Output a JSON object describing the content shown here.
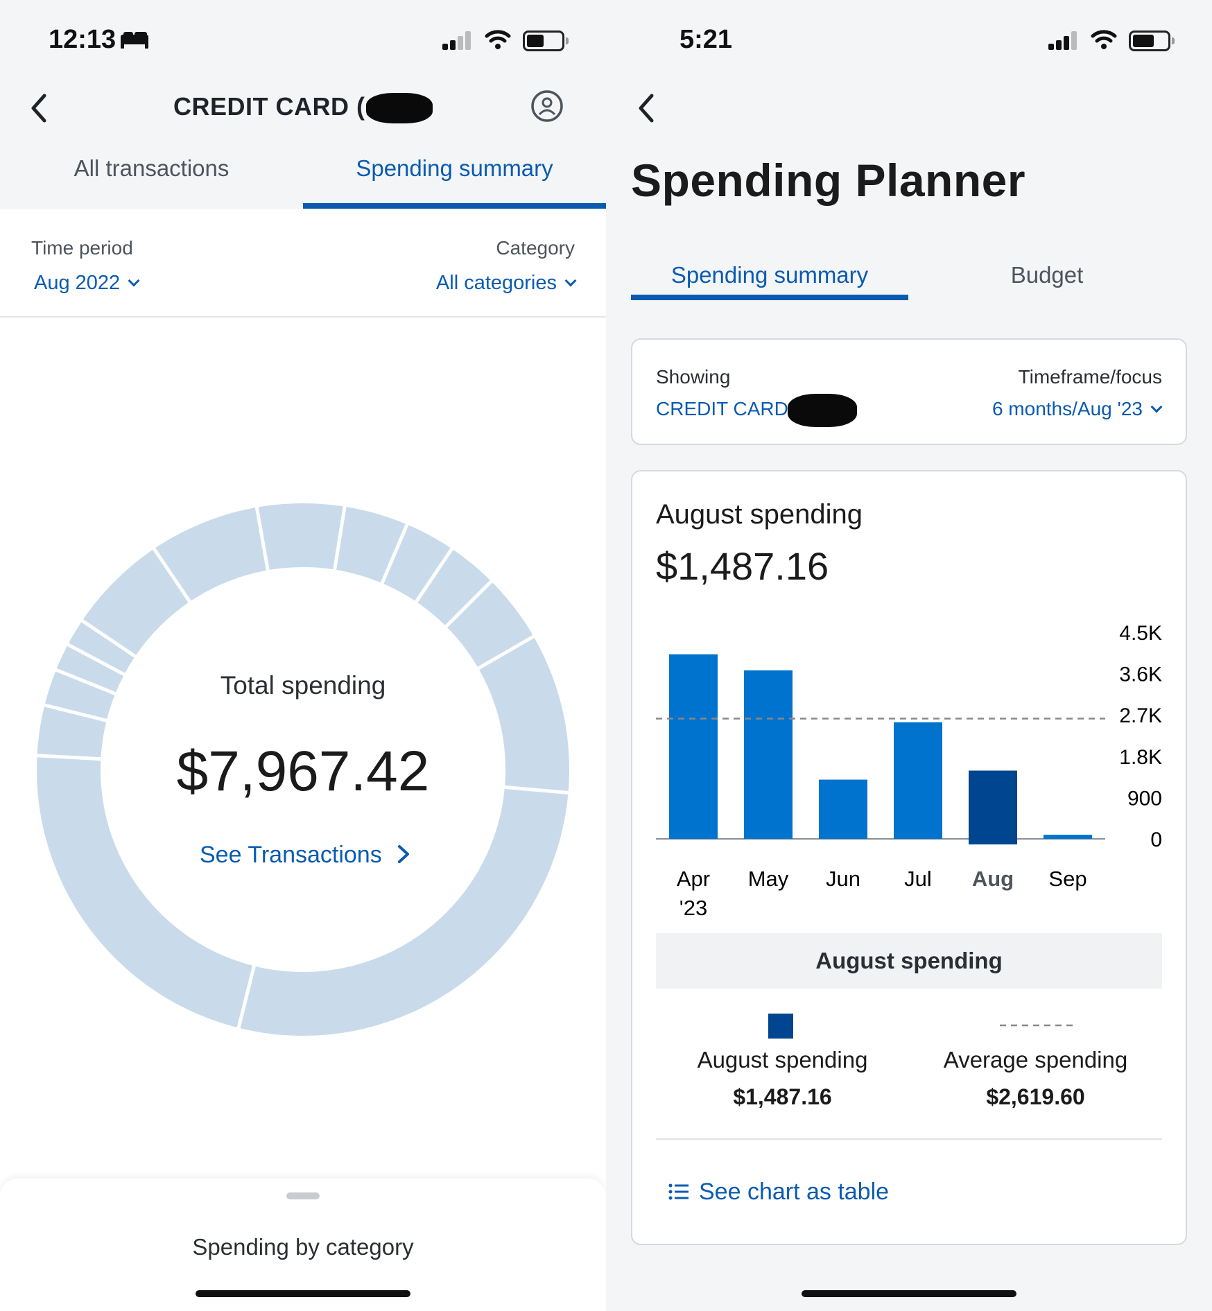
{
  "left": {
    "status_time": "12:13",
    "title": "CREDIT CARD (...",
    "tabs": [
      {
        "label": "All transactions",
        "active": false
      },
      {
        "label": "Spending summary",
        "active": true
      }
    ],
    "filters": {
      "time_period_label": "Time period",
      "time_period_value": "Aug 2022",
      "category_label": "Category",
      "category_value": "All categories"
    },
    "donut": {
      "total_label": "Total spending",
      "total_value": "$7,967.42",
      "link_label": "See Transactions"
    },
    "sheet_title": "Spending by category"
  },
  "right": {
    "status_time": "5:21",
    "title": "Spending Planner",
    "tabs": [
      {
        "label": "Spending summary",
        "active": true
      },
      {
        "label": "Budget",
        "active": false
      }
    ],
    "filters": {
      "showing_label": "Showing",
      "showing_value": "CREDIT CARD (...",
      "timeframe_label": "Timeframe/focus",
      "timeframe_value": "6 months/Aug '23"
    },
    "summary": {
      "heading": "August spending",
      "amount": "$1,487.16"
    },
    "legend": {
      "header": "August spending",
      "items": [
        {
          "label": "August spending",
          "value": "$1,487.16"
        },
        {
          "label": "Average spending",
          "value": "$2,619.60"
        }
      ]
    },
    "table_link": "See chart as table"
  },
  "chart_data": {
    "type": "bar",
    "categories": [
      "Apr '23",
      "May",
      "Jun",
      "Jul",
      "Aug",
      "Sep"
    ],
    "values": [
      4020,
      3670,
      1290,
      2540,
      1487.16,
      90
    ],
    "highlight_category": "Aug",
    "ylim": [
      0,
      4500
    ],
    "yticks": [
      "4.5K",
      "3.6K",
      "2.7K",
      "1.8K",
      "900",
      "0"
    ],
    "reference_line": {
      "value": 2619.6
    },
    "colors": {
      "bar": "#0073cf",
      "highlight": "#00458f",
      "reference": "#888888"
    }
  }
}
